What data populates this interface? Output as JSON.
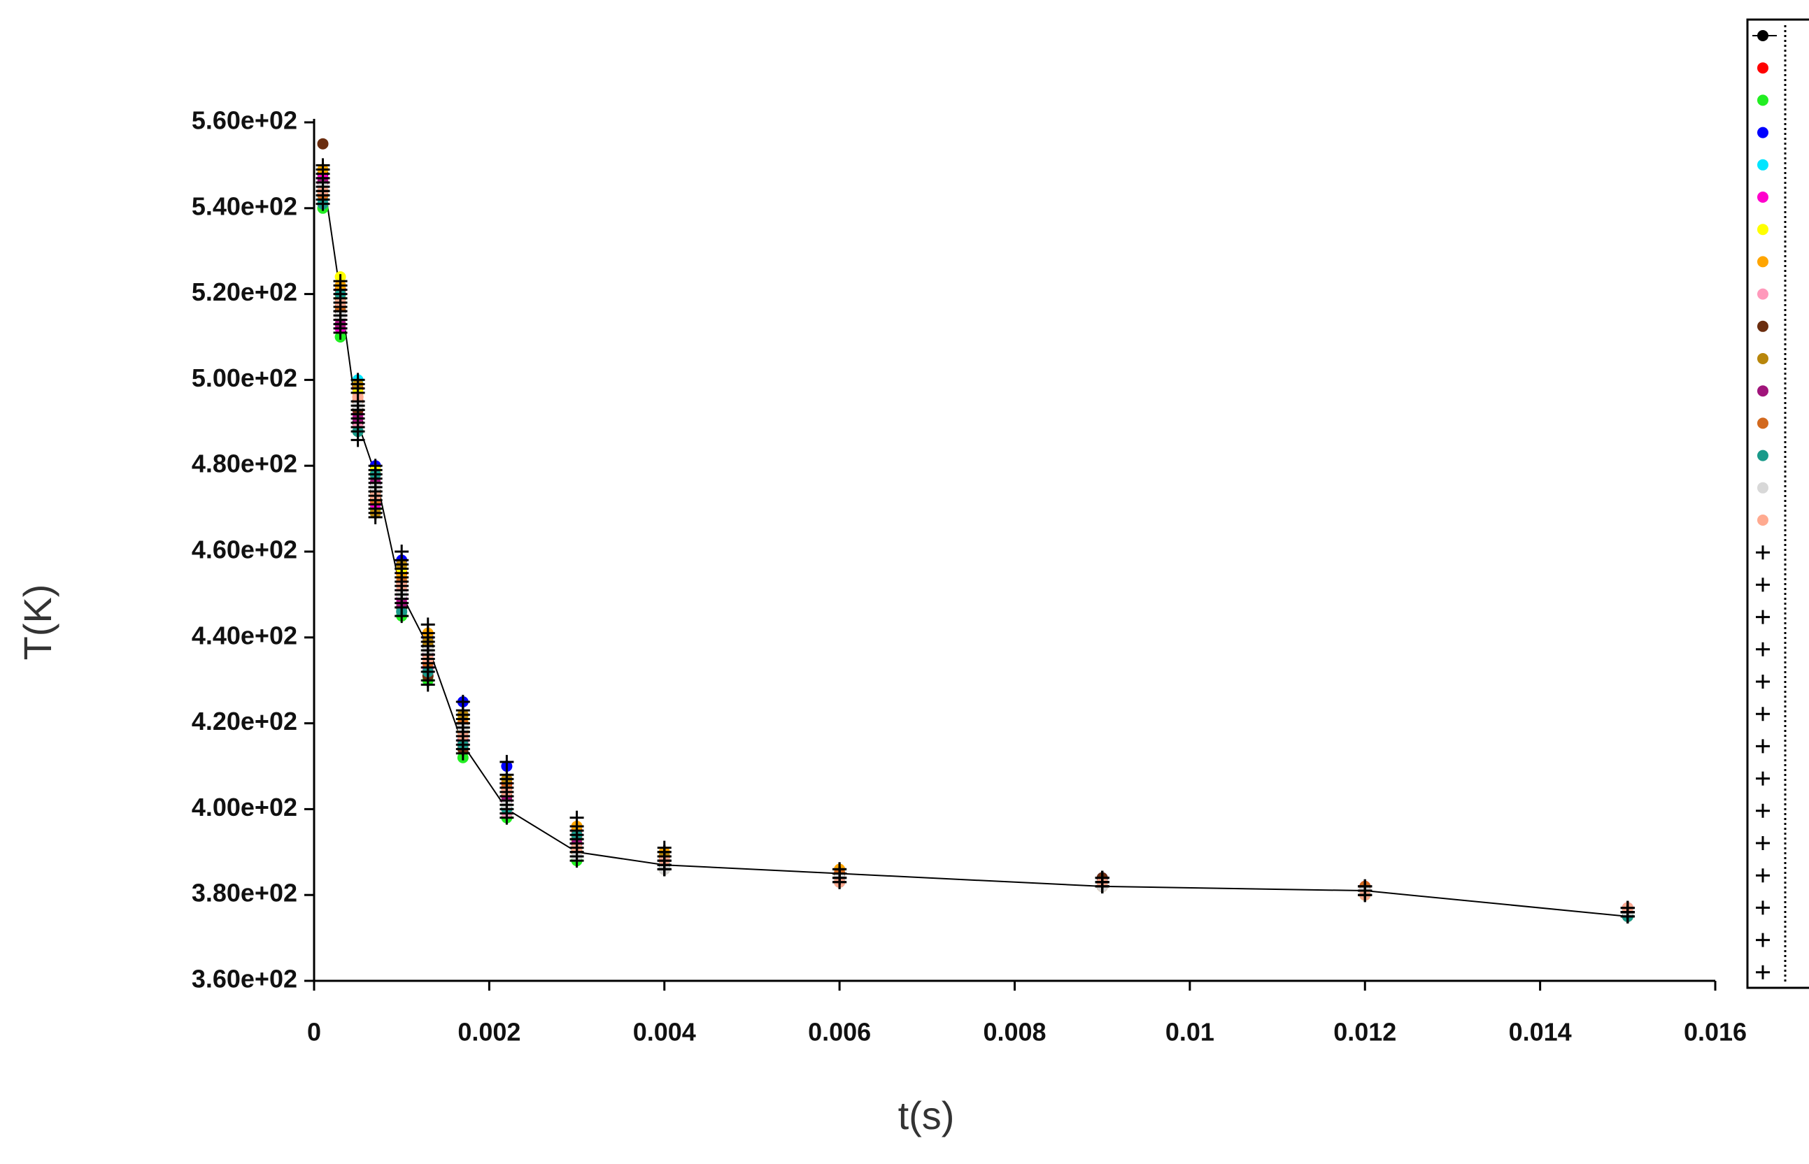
{
  "chart_data": {
    "type": "scatter",
    "x_label": "t(s)",
    "y_label": "T(K)",
    "xlim": [
      0,
      0.016
    ],
    "xticks": [
      0,
      0.002,
      0.004,
      0.006,
      0.008,
      0.01,
      0.012,
      0.014,
      0.016
    ],
    "ylim": [
      360,
      560
    ],
    "yticks": [
      {
        "value": 360,
        "label": "3.60e+02"
      },
      {
        "value": 380,
        "label": "3.80e+02"
      },
      {
        "value": 400,
        "label": "4.00e+02"
      },
      {
        "value": 420,
        "label": "4.20e+02"
      },
      {
        "value": 440,
        "label": "4.40e+02"
      },
      {
        "value": 460,
        "label": "4.60e+02"
      },
      {
        "value": 480,
        "label": "4.80e+02"
      },
      {
        "value": 500,
        "label": "5.00e+02"
      },
      {
        "value": 520,
        "label": "5.20e+02"
      },
      {
        "value": 540,
        "label": "5.40e+02"
      },
      {
        "value": 560,
        "label": "5.60e+02"
      }
    ],
    "x": [
      0.0001,
      0.0003,
      0.0005,
      0.0007,
      0.001,
      0.0013,
      0.0017,
      0.0022,
      0.003,
      0.004,
      0.006,
      0.009,
      0.012,
      0.015
    ],
    "series": [
      {
        "color": "#000000",
        "marker": "circle",
        "line": true,
        "values": [
          548,
          520,
          490,
          478,
          450,
          438,
          415,
          400,
          390,
          387,
          385,
          382,
          381,
          375
        ]
      },
      {
        "color": "#ff0000",
        "marker": "circle",
        "values": [
          546,
          521,
          498,
          472,
          455,
          432,
          420,
          406,
          395,
          389,
          384,
          383,
          382,
          377
        ]
      },
      {
        "color": "#22ee22",
        "marker": "circle",
        "values": [
          540,
          510,
          488,
          470,
          445,
          430,
          412,
          398,
          388,
          386,
          383,
          382,
          380,
          376
        ]
      },
      {
        "color": "#0000ff",
        "marker": "circle",
        "values": [
          545,
          515,
          495,
          480,
          458,
          440,
          425,
          410,
          393,
          387,
          385,
          384,
          381,
          376
        ]
      },
      {
        "color": "#00e5ff",
        "marker": "circle",
        "values": [
          542,
          518,
          500,
          476,
          452,
          436,
          419,
          400,
          391,
          388,
          384,
          383,
          381,
          375
        ]
      },
      {
        "color": "#ff00cc",
        "marker": "circle",
        "values": [
          547,
          512,
          492,
          471,
          449,
          433,
          416,
          405,
          394,
          389,
          385,
          382,
          382,
          377
        ]
      },
      {
        "color": "#ffff00",
        "marker": "circle",
        "values": [
          543,
          524,
          497,
          479,
          456,
          437,
          421,
          401,
          390,
          386,
          383,
          383,
          380,
          376
        ]
      },
      {
        "color": "#ffa500",
        "marker": "circle",
        "values": [
          549,
          522,
          496,
          473,
          454,
          441,
          418,
          404,
          396,
          390,
          386,
          382,
          381,
          377
        ]
      },
      {
        "color": "#ff99bb",
        "marker": "circle",
        "values": [
          541,
          514,
          489,
          477,
          451,
          434,
          417,
          399,
          392,
          387,
          384,
          383,
          382,
          376
        ]
      },
      {
        "color": "#6b2d0f",
        "marker": "circle",
        "values": [
          555,
          516,
          493,
          474,
          447,
          431,
          414,
          403,
          391,
          388,
          385,
          384,
          381,
          376
        ]
      },
      {
        "color": "#b8860b",
        "marker": "circle",
        "values": [
          544,
          519,
          499,
          469,
          457,
          439,
          422,
          407,
          393,
          389,
          384,
          382,
          380,
          375
        ]
      },
      {
        "color": "#a0147a",
        "marker": "circle",
        "values": [
          546,
          513,
          491,
          476,
          448,
          436,
          416,
          402,
          392,
          386,
          383,
          383,
          381,
          377
        ]
      },
      {
        "color": "#d2691e",
        "marker": "circle",
        "values": [
          543,
          517,
          495,
          472,
          453,
          434,
          420,
          405,
          390,
          388,
          385,
          382,
          382,
          376
        ]
      },
      {
        "color": "#1a9a8a",
        "marker": "circle",
        "values": [
          541,
          520,
          488,
          478,
          446,
          432,
          415,
          400,
          394,
          387,
          384,
          383,
          381,
          375
        ]
      },
      {
        "color": "#d8d8d8",
        "marker": "circle",
        "values": [
          545,
          515,
          494,
          475,
          450,
          437,
          419,
          401,
          389,
          386,
          384,
          382,
          381,
          376
        ]
      },
      {
        "color": "#ffaa90",
        "marker": "circle",
        "values": [
          544,
          518,
          496,
          473,
          452,
          435,
          417,
          404,
          391,
          388,
          383,
          383,
          380,
          377
        ]
      },
      {
        "color": "#000000",
        "marker": "plus",
        "values": [
          548,
          519,
          493,
          477,
          455,
          438,
          420,
          406,
          393,
          389,
          385,
          383,
          381,
          376
        ]
      },
      {
        "color": "#000000",
        "marker": "plus",
        "values": [
          546,
          514,
          490,
          471,
          449,
          433,
          418,
          403,
          391,
          387,
          384,
          382,
          382,
          375
        ]
      },
      {
        "color": "#000000",
        "marker": "plus",
        "values": [
          543,
          521,
          498,
          479,
          458,
          441,
          423,
          408,
          396,
          390,
          386,
          384,
          381,
          377
        ]
      },
      {
        "color": "#000000",
        "marker": "plus",
        "values": [
          547,
          516,
          488,
          474,
          451,
          436,
          416,
          400,
          390,
          386,
          383,
          383,
          380,
          376
        ]
      },
      {
        "color": "#000000",
        "marker": "plus",
        "values": [
          541,
          512,
          495,
          470,
          447,
          430,
          414,
          399,
          389,
          388,
          385,
          382,
          382,
          376
        ]
      },
      {
        "color": "#000000",
        "marker": "plus",
        "values": [
          550,
          523,
          500,
          480,
          460,
          443,
          425,
          411,
          398,
          391,
          385,
          384,
          381,
          375
        ]
      },
      {
        "color": "#000000",
        "marker": "plus",
        "values": [
          544,
          518,
          492,
          472,
          452,
          434,
          419,
          402,
          392,
          387,
          384,
          382,
          381,
          377
        ]
      },
      {
        "color": "#000000",
        "marker": "plus",
        "values": [
          545,
          511,
          486,
          468,
          445,
          429,
          413,
          398,
          388,
          386,
          383,
          383,
          382,
          376
        ]
      },
      {
        "color": "#000000",
        "marker": "plus",
        "values": [
          549,
          520,
          497,
          476,
          456,
          440,
          422,
          407,
          395,
          389,
          386,
          384,
          380,
          376
        ]
      },
      {
        "color": "#000000",
        "marker": "plus",
        "values": [
          542,
          515,
          491,
          473,
          450,
          435,
          417,
          404,
          392,
          388,
          384,
          382,
          381,
          375
        ]
      },
      {
        "color": "#000000",
        "marker": "plus",
        "values": [
          546,
          517,
          494,
          475,
          454,
          437,
          420,
          405,
          393,
          387,
          385,
          383,
          381,
          377
        ]
      },
      {
        "color": "#000000",
        "marker": "plus",
        "values": [
          543,
          513,
          489,
          469,
          448,
          432,
          415,
          401,
          390,
          386,
          384,
          382,
          382,
          376
        ]
      },
      {
        "color": "#000000",
        "marker": "plus",
        "values": [
          547,
          522,
          499,
          478,
          457,
          439,
          421,
          406,
          394,
          390,
          385,
          384,
          381,
          376
        ]
      },
      {
        "color": "#000000",
        "marker": "plus",
        "values": [
          544,
          516,
          493,
          474,
          453,
          436,
          418,
          403,
          392,
          388,
          384,
          383,
          380,
          376
        ]
      }
    ]
  }
}
